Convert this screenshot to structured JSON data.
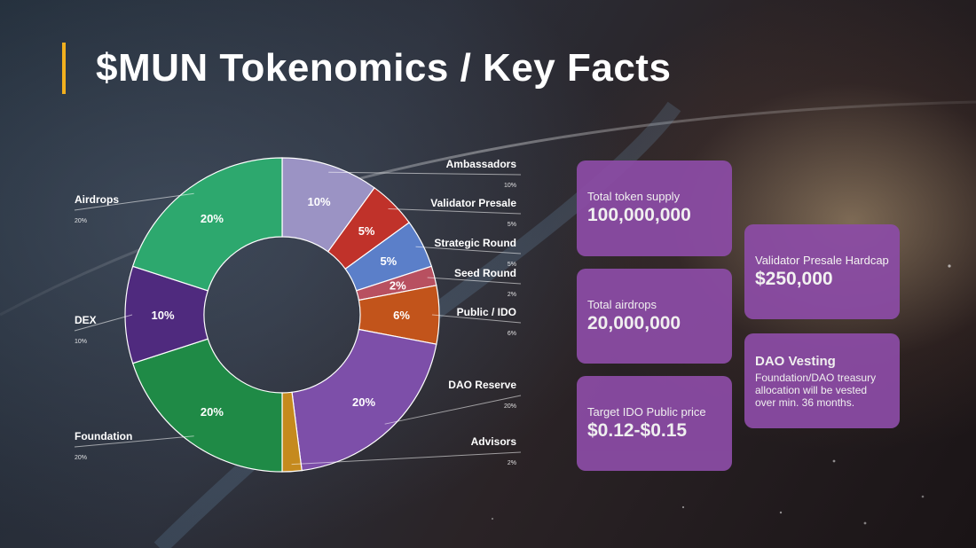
{
  "title": "$MUN Tokenomics / Key Facts",
  "colors": {
    "accent": "#f2b01e",
    "card_bg": "#8c4ca6",
    "text": "#ffffff"
  },
  "chart_data": {
    "type": "pie",
    "style": "donut",
    "slices": [
      {
        "name": "Ambassadors",
        "value": 10,
        "label": "10%",
        "legend_value": "10%",
        "color": "#9b93c4"
      },
      {
        "name": "Validator Presale",
        "value": 5,
        "label": "5%",
        "legend_value": "5%",
        "color": "#c0322a"
      },
      {
        "name": "Strategic Round",
        "value": 5,
        "label": "5%",
        "legend_value": "5%",
        "color": "#5b7fc9"
      },
      {
        "name": "Seed Round",
        "value": 2,
        "label": "2%",
        "legend_value": "2%",
        "color": "#b85060"
      },
      {
        "name": "Public / IDO",
        "value": 6,
        "label": "6%",
        "legend_value": "6%",
        "color": "#c2541b"
      },
      {
        "name": "DAO Reserve",
        "value": 20,
        "label": "20%",
        "legend_value": "20%",
        "color": "#7d4fa9"
      },
      {
        "name": "Advisors",
        "value": 2,
        "label": "",
        "legend_value": "2%",
        "color": "#c58a1e"
      },
      {
        "name": "Foundation",
        "value": 20,
        "label": "20%",
        "legend_value": "20%",
        "color": "#1f8a46"
      },
      {
        "name": "DEX",
        "value": 10,
        "label": "10%",
        "legend_value": "10%",
        "color": "#4f2a7e"
      },
      {
        "name": "Airdrops",
        "value": 20,
        "label": "20%",
        "legend_value": "20%",
        "color": "#2da86e"
      }
    ]
  },
  "facts": [
    {
      "label": "Total token supply",
      "value": "100,000,000"
    },
    {
      "label": "Total airdrops",
      "value": "20,000,000"
    },
    {
      "label": "Target IDO Public price",
      "value": "$0.12-$0.15"
    },
    {
      "label": "Validator Presale Hardcap",
      "value": "$250,000"
    }
  ],
  "vesting": {
    "title": "DAO Vesting",
    "text": "Foundation/DAO treasury allocation will be vested over min. 36 months."
  }
}
